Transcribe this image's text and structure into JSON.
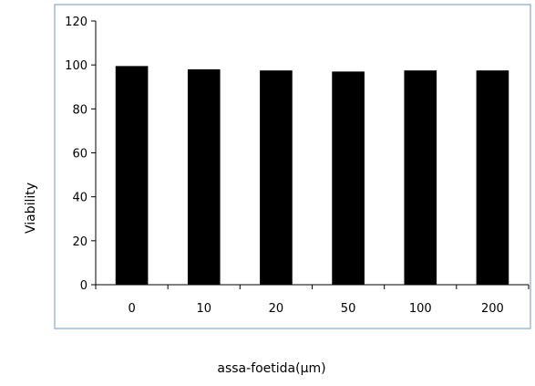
{
  "chart_data": {
    "type": "bar",
    "categories": [
      "0",
      "10",
      "20",
      "50",
      "100",
      "200"
    ],
    "values": [
      99.5,
      98,
      97.5,
      97,
      97.5,
      97.5
    ],
    "xlabel": "assa-foetida(µm)",
    "ylabel": "Viability",
    "ylim": [
      0,
      120
    ],
    "yticks": [
      0,
      20,
      40,
      60,
      80,
      100,
      120
    ],
    "grid": false,
    "legend": "none",
    "bar_color": "#000000",
    "frame_color": "#9db8d6"
  }
}
